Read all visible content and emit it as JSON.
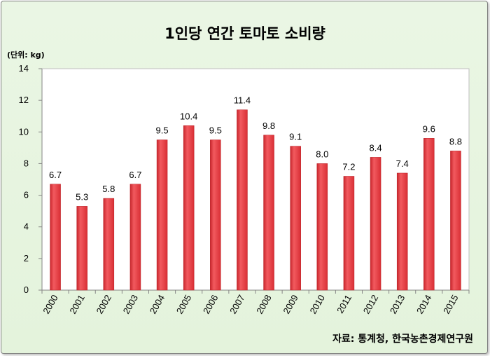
{
  "chart_data": {
    "type": "bar",
    "title": "1인당 연간 토마토 소비량",
    "unit_label": "(단위: kg)",
    "source": "자료: 통계청, 한국농촌경제연구원",
    "categories": [
      "2000",
      "2001",
      "2002",
      "2003",
      "2004",
      "2005",
      "2006",
      "2007",
      "2008",
      "2009",
      "2010",
      "2011",
      "2012",
      "2013",
      "2014",
      "2015"
    ],
    "values": [
      6.7,
      5.3,
      5.8,
      6.7,
      9.5,
      10.4,
      9.5,
      11.4,
      9.8,
      9.1,
      8.0,
      7.2,
      8.4,
      7.4,
      9.6,
      8.8
    ],
    "data_labels": [
      "6.7",
      "5.3",
      "5.8",
      "6.7",
      "9.5",
      "10.4",
      "9.5",
      "11.4",
      "9.8",
      "9.1",
      "8.0",
      "7.2",
      "8.4",
      "7.4",
      "9.6",
      "8.8"
    ],
    "yticks": [
      "0",
      "2",
      "4",
      "6",
      "8",
      "10",
      "12",
      "14"
    ],
    "ylim": [
      0,
      14
    ],
    "grid": false,
    "legend": "none",
    "bar_color": "#e8393f"
  }
}
